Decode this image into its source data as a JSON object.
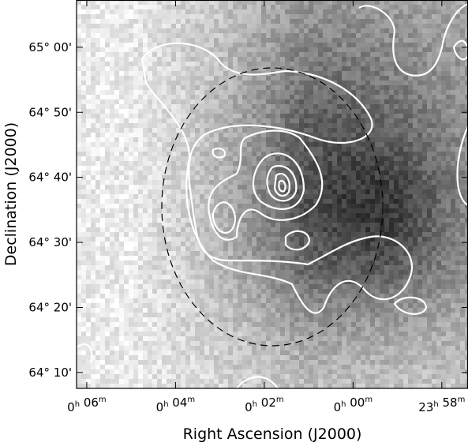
{
  "chart_data": {
    "type": "image",
    "xlabel": "Right Ascension (J2000)",
    "ylabel": "Declination (J2000)",
    "xlim": [
      6.23,
      -2.59
    ],
    "xticks": [
      {
        "value": 6,
        "label": "0h 06m"
      },
      {
        "value": 4,
        "label": "0h 04m"
      },
      {
        "value": 2,
        "label": "0h 02m"
      },
      {
        "value": 0,
        "label": "0h 00m"
      },
      {
        "value": -2,
        "label": "23h 58m"
      }
    ],
    "ylim": [
      64.126,
      65.121
    ],
    "yticks": [
      {
        "value": 65,
        "label": "65° 00'"
      },
      {
        "value": 64.8333,
        "label": "64° 50'"
      },
      {
        "value": 64.6667,
        "label": "64° 40'"
      },
      {
        "value": 64.5,
        "label": "64° 30'"
      },
      {
        "value": 64.3333,
        "label": "64° 20'"
      },
      {
        "value": 64.1667,
        "label": "64° 10'"
      }
    ]
  }
}
